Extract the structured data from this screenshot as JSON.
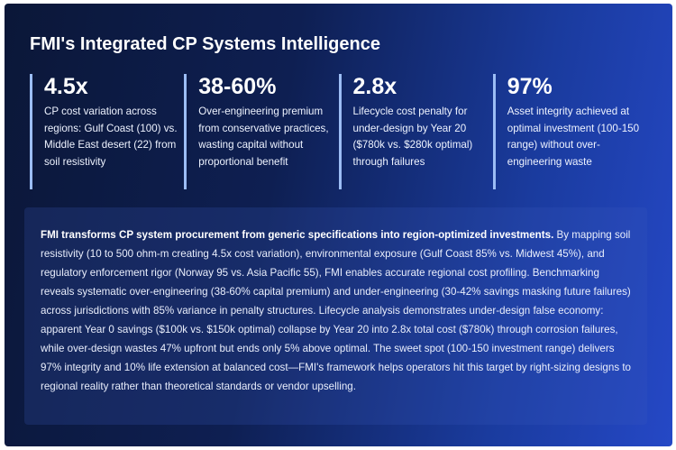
{
  "title": "FMI's Integrated CP Systems Intelligence",
  "stats": [
    {
      "value": "4.5x",
      "description": "CP cost variation across regions: Gulf Coast (100) vs. Middle East desert (22) from soil resistivity"
    },
    {
      "value": "38-60%",
      "description": "Over-engineering premium from conservative practices, wasting capital without proportional benefit"
    },
    {
      "value": "2.8x",
      "description": "Lifecycle cost penalty for under-design by Year 20 ($780k vs. $280k optimal) through failures"
    },
    {
      "value": "97%",
      "description": "Asset integrity achieved at optimal investment (100-150 range) without over-engineering waste"
    }
  ],
  "summary": {
    "lead": "FMI transforms CP system procurement from generic specifications into region-optimized investments.",
    "body": " By mapping soil resistivity (10 to 500 ohm-m creating 4.5x cost variation), environmental exposure (Gulf Coast 85% vs. Midwest 45%), and regulatory enforcement rigor (Norway 95 vs. Asia Pacific 55), FMI enables accurate regional cost profiling. Benchmarking reveals systematic over-engineering (38-60% capital premium) and under-engineering (30-42% savings masking future failures) across jurisdictions with 85% variance in penalty structures. Lifecycle analysis demonstrates under-design false economy: apparent Year 0 savings ($100k vs. $150k optimal) collapse by Year 20 into 2.8x total cost ($780k) through corrosion failures, while over-design wastes 47% upfront but ends only 5% above optimal. The sweet spot (100-150 investment range) delivers 97% integrity and 10% life extension at balanced cost—FMI's framework helps operators hit this target by right-sizing designs to regional reality rather than theoretical standards or vendor upselling."
  }
}
